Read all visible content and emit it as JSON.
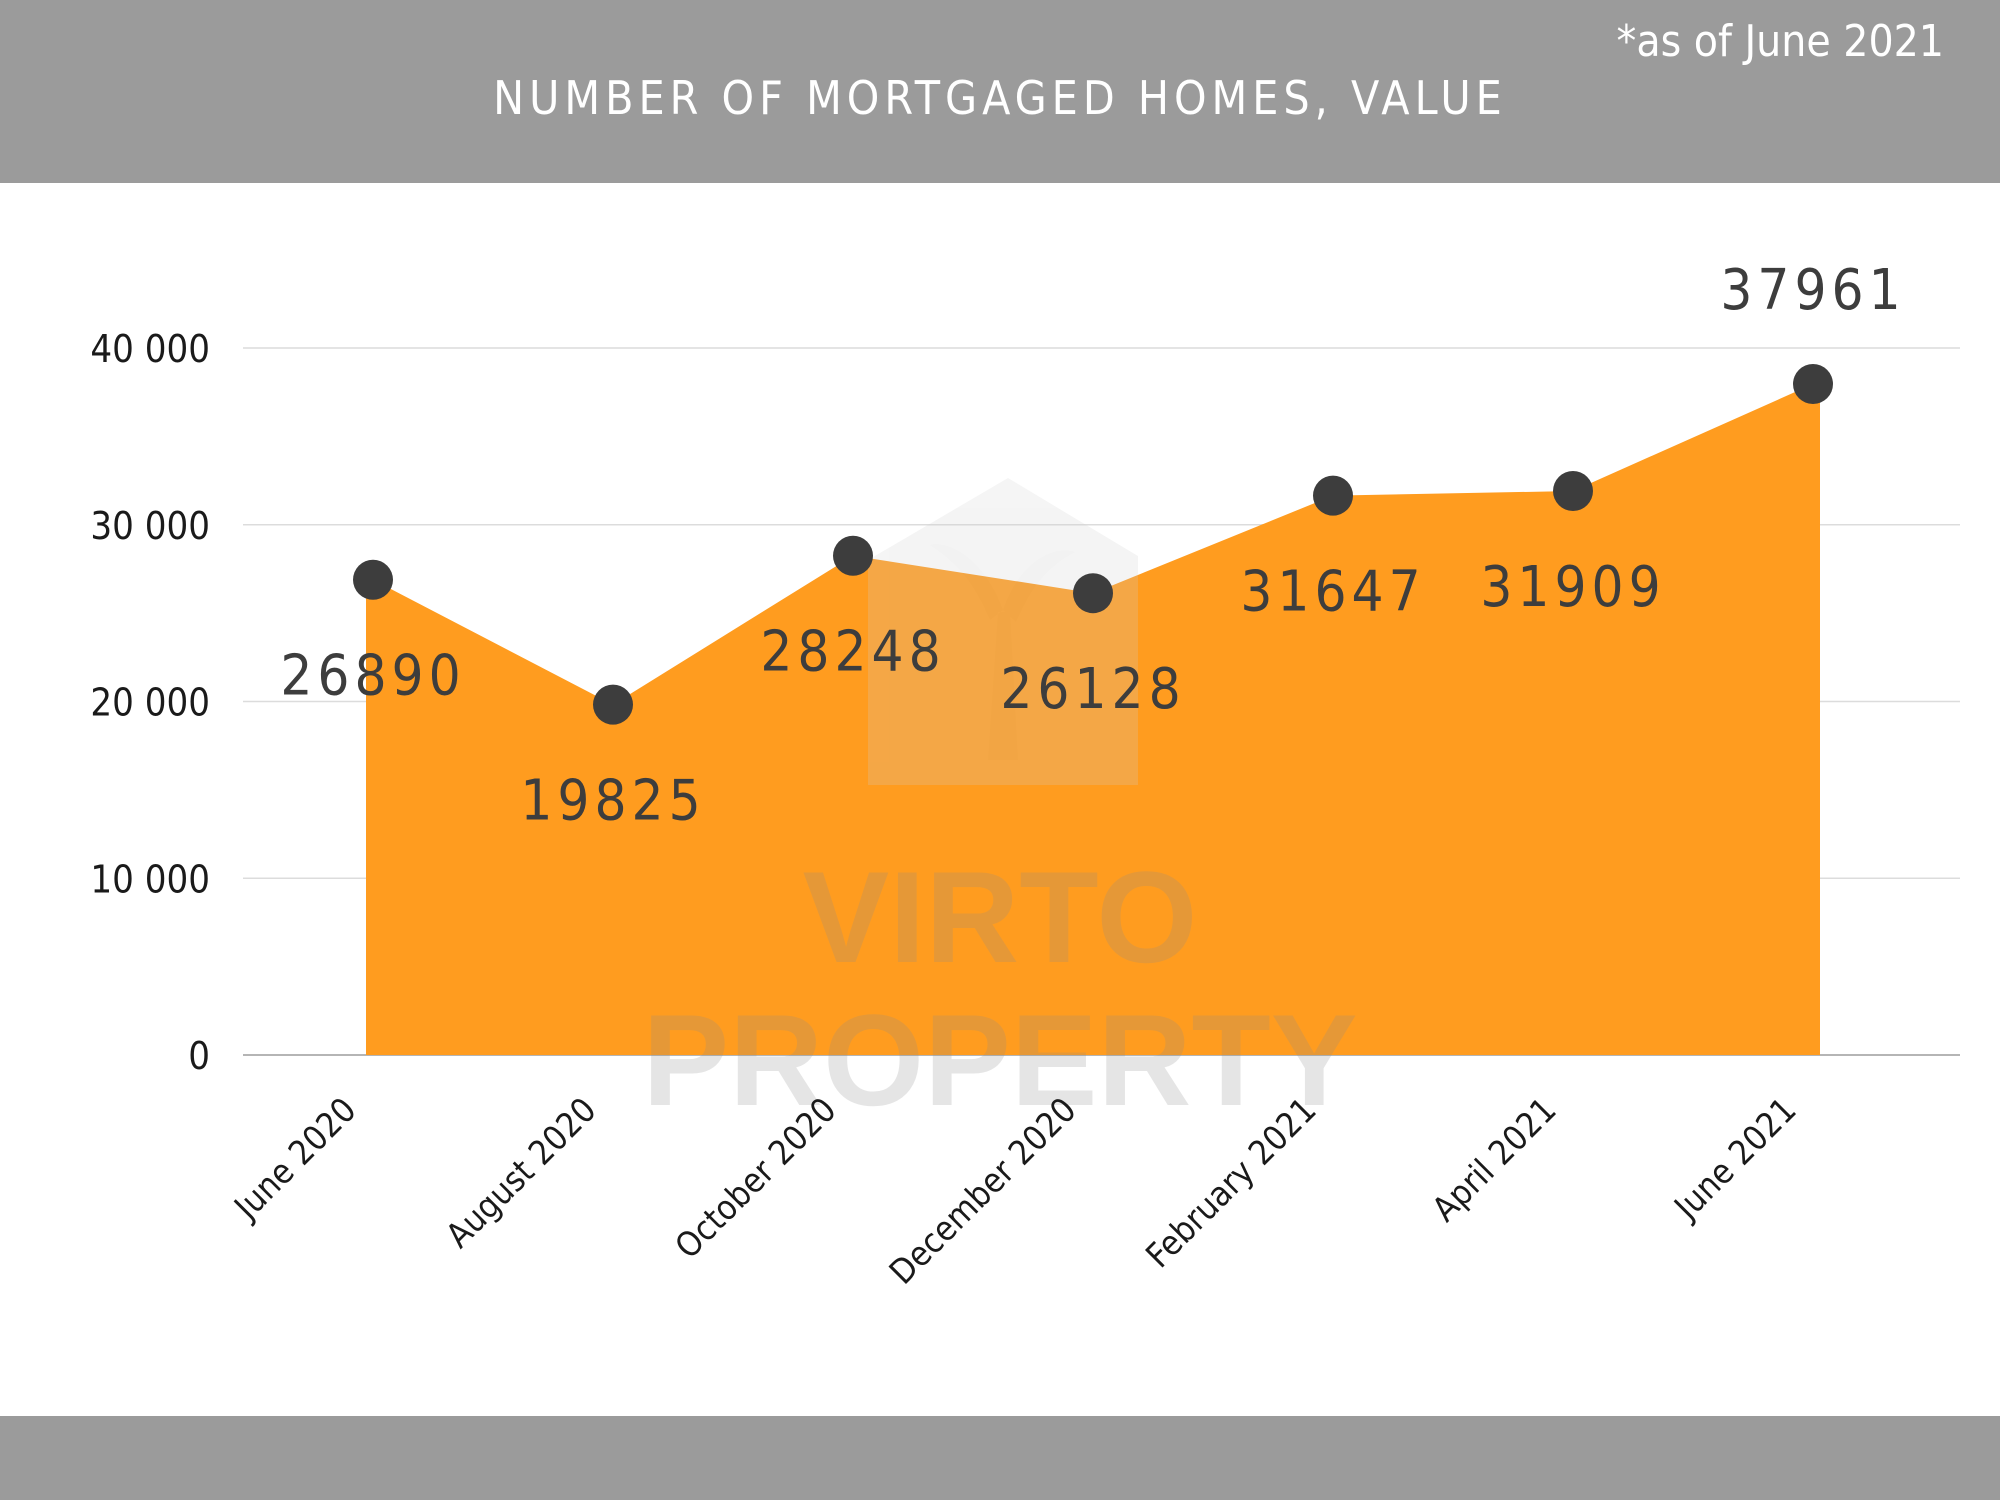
{
  "header": {
    "title": "NUMBER OF MORTGAGED HOMES, VALUE"
  },
  "footer": {
    "note": "*as of June 2021"
  },
  "watermark": {
    "line1": "VIRTO",
    "line2": "PROPERTY",
    "icon": "house-palm-logo-icon"
  },
  "colors": {
    "area": "#ff9c1f",
    "point": "#3d3d3d",
    "band": "#9b9b9b",
    "grid": "#dcdcdc"
  },
  "chart_data": {
    "type": "area",
    "title": "NUMBER OF MORTGAGED HOMES, VALUE",
    "xlabel": "",
    "ylabel": "",
    "categories": [
      "June 2020",
      "August 2020",
      "October 2020",
      "December 2020",
      "February 2021",
      "April 2021",
      "June 2021"
    ],
    "values": [
      26890,
      19825,
      28248,
      26128,
      31647,
      31909,
      37961
    ],
    "data_labels": [
      "26890",
      "19825",
      "28248",
      "26128",
      "31647",
      "31909",
      "37961"
    ],
    "yticks": [
      0,
      10000,
      20000,
      30000,
      40000
    ],
    "ytick_labels": [
      "0",
      "10 000",
      "20 000",
      "30 000",
      "40 000"
    ],
    "ylim": [
      0,
      40000
    ],
    "grid": true,
    "legend": "none"
  }
}
